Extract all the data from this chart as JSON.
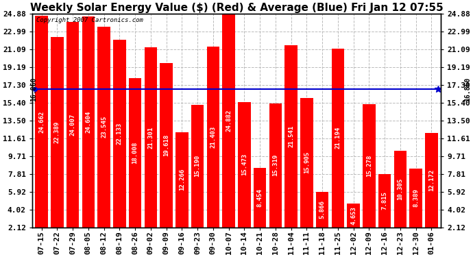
{
  "title": "Weekly Solar Energy Value ($) (Red) & Average (Blue) Fri Jan 12 07:55",
  "copyright": "Copyright 2007 Cartronics.com",
  "categories": [
    "07-15",
    "07-22",
    "07-29",
    "08-05",
    "08-12",
    "08-19",
    "08-26",
    "09-02",
    "09-09",
    "09-16",
    "09-23",
    "09-30",
    "10-07",
    "10-14",
    "10-21",
    "10-28",
    "11-04",
    "11-11",
    "11-18",
    "11-25",
    "12-02",
    "12-09",
    "12-16",
    "12-23",
    "12-30",
    "01-06"
  ],
  "values": [
    24.662,
    22.389,
    24.007,
    24.604,
    23.545,
    22.133,
    18.008,
    21.301,
    19.618,
    12.266,
    15.19,
    21.403,
    24.882,
    15.473,
    8.454,
    15.319,
    21.541,
    15.905,
    5.866,
    21.194,
    4.653,
    15.278,
    7.815,
    10.305,
    8.389,
    12.172
  ],
  "average": 16.86,
  "bar_color": "#ff0000",
  "avg_line_color": "#0000cd",
  "background_color": "#ffffff",
  "plot_bg_color": "#ffffff",
  "yticks": [
    2.12,
    4.02,
    5.92,
    7.81,
    9.71,
    11.61,
    13.5,
    15.4,
    17.3,
    19.19,
    21.09,
    22.99,
    24.88
  ],
  "ymin": 2.12,
  "ymax": 24.88,
  "grid_color": "#bbbbbb",
  "avg_label": "16.860",
  "title_fontsize": 11,
  "tick_fontsize": 8,
  "bar_label_fontsize": 6.5,
  "copyright_fontsize": 6.5
}
